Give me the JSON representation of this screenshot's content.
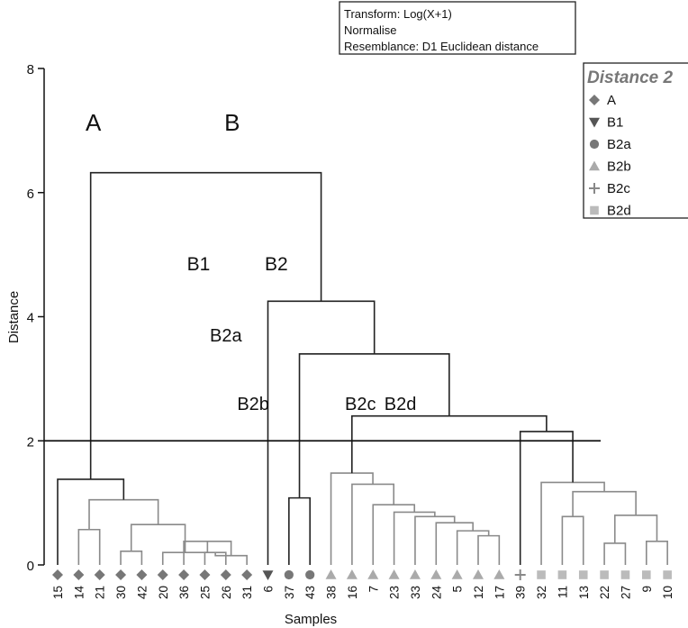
{
  "chart_data": {
    "type": "dendrogram",
    "xlabel": "Samples",
    "ylabel": "Distance",
    "ylim": [
      0,
      8
    ],
    "yticks": [
      0,
      2,
      4,
      6,
      8
    ],
    "cut_line": 2,
    "grid": false,
    "info_box": [
      "Transform: Log(X+1)",
      "Normalise",
      "Resemblance: D1 Euclidean distance"
    ],
    "legend": {
      "position": "right",
      "title": "Distance 2",
      "entries": [
        {
          "label": "A",
          "symbol": "diamond",
          "color": "#777777"
        },
        {
          "label": "B1",
          "symbol": "triangle-down",
          "color": "#555555"
        },
        {
          "label": "B2a",
          "symbol": "circle",
          "color": "#777777"
        },
        {
          "label": "B2b",
          "symbol": "triangle-up",
          "color": "#aaaaaa"
        },
        {
          "label": "B2c",
          "symbol": "plus",
          "color": "#888888"
        },
        {
          "label": "B2d",
          "symbol": "square",
          "color": "#bbbbbb"
        }
      ]
    },
    "samples": [
      {
        "label": "15",
        "group": "A"
      },
      {
        "label": "14",
        "group": "A"
      },
      {
        "label": "21",
        "group": "A"
      },
      {
        "label": "30",
        "group": "A"
      },
      {
        "label": "42",
        "group": "A"
      },
      {
        "label": "20",
        "group": "A"
      },
      {
        "label": "36",
        "group": "A"
      },
      {
        "label": "25",
        "group": "A"
      },
      {
        "label": "26",
        "group": "A"
      },
      {
        "label": "31",
        "group": "A"
      },
      {
        "label": "6",
        "group": "B1"
      },
      {
        "label": "37",
        "group": "B2a"
      },
      {
        "label": "43",
        "group": "B2a"
      },
      {
        "label": "38",
        "group": "B2b"
      },
      {
        "label": "16",
        "group": "B2b"
      },
      {
        "label": "7",
        "group": "B2b"
      },
      {
        "label": "23",
        "group": "B2b"
      },
      {
        "label": "33",
        "group": "B2b"
      },
      {
        "label": "24",
        "group": "B2b"
      },
      {
        "label": "5",
        "group": "B2b"
      },
      {
        "label": "12",
        "group": "B2b"
      },
      {
        "label": "17",
        "group": "B2b"
      },
      {
        "label": "39",
        "group": "B2c"
      },
      {
        "label": "32",
        "group": "B2d"
      },
      {
        "label": "11",
        "group": "B2d"
      },
      {
        "label": "13",
        "group": "B2d"
      },
      {
        "label": "22",
        "group": "B2d"
      },
      {
        "label": "27",
        "group": "B2d"
      },
      {
        "label": "9",
        "group": "B2d"
      },
      {
        "label": "10",
        "group": "B2d"
      }
    ],
    "merges": [
      {
        "a": "s7",
        "b": "s8",
        "h": 0.2,
        "gray": true
      },
      {
        "a": "s9",
        "b": "m0",
        "h": 0.15,
        "gray": true
      },
      {
        "a": "s6",
        "b": "m1",
        "h": 0.38,
        "gray": true
      },
      {
        "a": "s5",
        "b": "m2",
        "h": 0.2,
        "gray": true
      },
      {
        "a": "s3",
        "b": "s4",
        "h": 0.22,
        "gray": true
      },
      {
        "a": "m4",
        "b": "m3",
        "h": 0.65,
        "gray": true
      },
      {
        "a": "s1",
        "b": "s2",
        "h": 0.57,
        "gray": true
      },
      {
        "a": "m6",
        "b": "m5",
        "h": 1.05,
        "gray": true
      },
      {
        "a": "s0",
        "b": "m7",
        "h": 1.38,
        "gray": false
      },
      {
        "a": "s11",
        "b": "s12",
        "h": 1.08,
        "gray": false
      },
      {
        "a": "s20",
        "b": "s21",
        "h": 0.47,
        "gray": true
      },
      {
        "a": "s19",
        "b": "m10",
        "h": 0.55,
        "gray": true
      },
      {
        "a": "s18",
        "b": "m11",
        "h": 0.68,
        "gray": true
      },
      {
        "a": "s17",
        "b": "m12",
        "h": 0.78,
        "gray": true
      },
      {
        "a": "s16",
        "b": "m13",
        "h": 0.85,
        "gray": true
      },
      {
        "a": "s15",
        "b": "m14",
        "h": 0.97,
        "gray": true
      },
      {
        "a": "s14",
        "b": "m15",
        "h": 1.3,
        "gray": true
      },
      {
        "a": "s13",
        "b": "m16",
        "h": 1.48,
        "gray": true
      },
      {
        "a": "s26",
        "b": "s27",
        "h": 0.35,
        "gray": true
      },
      {
        "a": "s28",
        "b": "s29",
        "h": 0.38,
        "gray": true
      },
      {
        "a": "m18",
        "b": "m19",
        "h": 0.8,
        "gray": true
      },
      {
        "a": "s24",
        "b": "s25",
        "h": 0.78,
        "gray": true
      },
      {
        "a": "m21",
        "b": "m20",
        "h": 1.18,
        "gray": true
      },
      {
        "a": "s23",
        "b": "m22",
        "h": 1.33,
        "gray": true
      },
      {
        "a": "s22",
        "b": "m23",
        "h": 2.15,
        "gray": false
      },
      {
        "a": "m17",
        "b": "m24",
        "h": 2.4,
        "gray": false
      },
      {
        "a": "m9",
        "b": "m25",
        "h": 3.4,
        "gray": false
      },
      {
        "a": "s10",
        "b": "m26",
        "h": 4.25,
        "gray": false
      },
      {
        "a": "m8",
        "b": "m27",
        "h": 6.32,
        "gray": false
      }
    ],
    "cluster_labels": [
      {
        "text": "A",
        "x": 1.7,
        "y": 7.0,
        "size": 26
      },
      {
        "text": "B",
        "x": 8.3,
        "y": 7.0,
        "size": 26
      },
      {
        "text": "B1",
        "x": 6.7,
        "y": 4.75,
        "size": 21
      },
      {
        "text": "B2",
        "x": 10.4,
        "y": 4.75,
        "size": 21
      },
      {
        "text": "B2a",
        "x": 8.0,
        "y": 3.6,
        "size": 20
      },
      {
        "text": "B2b",
        "x": 9.3,
        "y": 2.5,
        "size": 20
      },
      {
        "text": "B2c",
        "x": 14.4,
        "y": 2.5,
        "size": 20
      },
      {
        "text": "B2d",
        "x": 16.3,
        "y": 2.5,
        "size": 20
      }
    ]
  }
}
